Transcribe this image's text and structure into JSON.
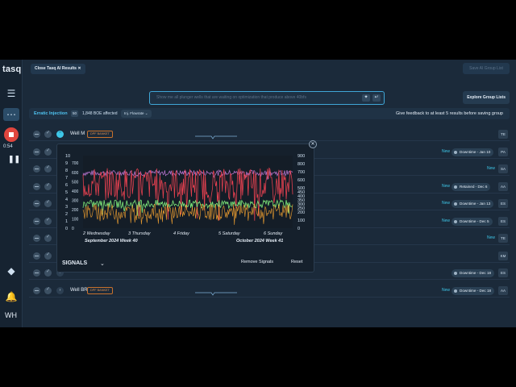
{
  "app": {
    "logo": "tasq",
    "timer": "0:54",
    "user_initials": "WH"
  },
  "top": {
    "close_chip": "Close Tasq AI Results",
    "top_right_button": "Save AI Group List",
    "search_placeholder": "Show me all plunger wells that are waiting on optimization that produce above 40bfs",
    "explore_button": "Explore Group Lists"
  },
  "filter": {
    "title": "Erratic Injection",
    "count": "50",
    "boe": "1,848 BOE affected",
    "chip": "Inj. Flowrate",
    "feedback": "Give feedback to at least 5 results before saving group"
  },
  "rows": [
    {
      "name": "Well M",
      "badge": "DPF BANKET",
      "new": "",
      "status": "",
      "initials": "TE"
    },
    {
      "name": "",
      "badge": "",
      "new": "New",
      "status": "Downtime - Jan 10",
      "initials": "PA"
    },
    {
      "name": "",
      "badge": "",
      "new": "New",
      "status": "",
      "initials": "SA"
    },
    {
      "name": "",
      "badge": "",
      "new": "New",
      "status": "Retained - Dec 6",
      "initials": "AA"
    },
    {
      "name": "",
      "badge": "",
      "new": "New",
      "status": "Downtime - Jan 13",
      "initials": "ES"
    },
    {
      "name": "",
      "badge": "",
      "new": "New",
      "status": "Downtime - Dec 5",
      "initials": "ES"
    },
    {
      "name": "",
      "badge": "",
      "new": "New",
      "status": "",
      "initials": "TE"
    },
    {
      "name": "",
      "badge": "",
      "new": "",
      "status": "",
      "initials": "KM"
    },
    {
      "name": "",
      "badge": "",
      "new": "",
      "status": "Downtime - Dec 18",
      "initials": "ES"
    },
    {
      "name": "Well BR",
      "badge": "DPF BANKET",
      "new": "New",
      "status": "Downtime - Dec 18",
      "initials": "AA"
    }
  ],
  "popup": {
    "signals_label": "SIGNALS",
    "remove_label": "Remove Signals",
    "reset_label": "Reset"
  },
  "chart_data": {
    "type": "line",
    "title": "",
    "left_axis_ticks": [
      0,
      1,
      2,
      3,
      4,
      5,
      6,
      7,
      8,
      9,
      10
    ],
    "right_axis_ticks": [
      0,
      100,
      200,
      250,
      300,
      350,
      400,
      450,
      500,
      600,
      700,
      800,
      900
    ],
    "left_axis_alt_ticks": [
      0,
      100,
      200,
      300,
      400,
      500,
      600,
      700
    ],
    "x_tick_labels": [
      "2 Wednesday",
      "3 Thursday",
      "4 Friday",
      "5 Saturday",
      "6 Sunday"
    ],
    "x_period_labels": [
      "September 2024 Week 40",
      "October 2024 Week 41"
    ],
    "series": [
      {
        "color": "#e0404f",
        "approx_range": [
          350,
          750
        ]
      },
      {
        "color": "#7de87a",
        "approx_range": [
          250,
          350
        ]
      },
      {
        "color": "#f0a030",
        "approx_range": [
          100,
          300
        ]
      },
      {
        "color": "#c07ad8",
        "approx_range": [
          650,
          720
        ]
      }
    ],
    "colors": {
      "red": "#e0404f",
      "green": "#7de87a",
      "orange": "#f0a030",
      "purple": "#c07ad8"
    }
  }
}
